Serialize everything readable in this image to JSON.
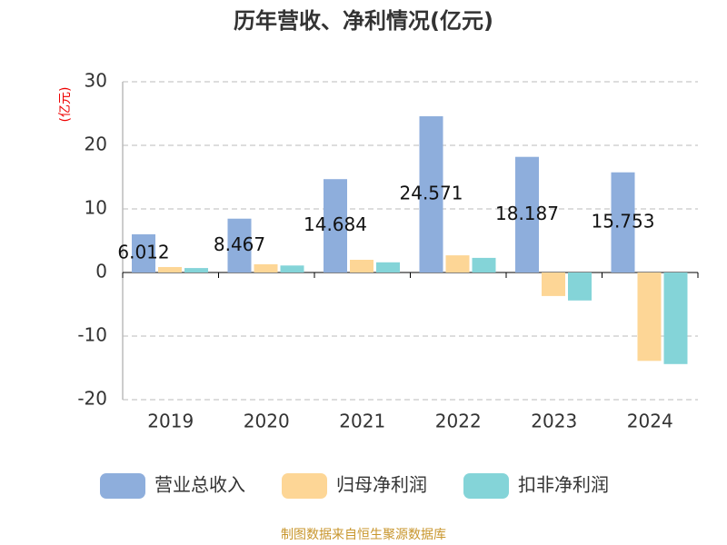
{
  "chart_data": {
    "type": "bar",
    "title": "历年营收、净利情况(亿元)",
    "y_label": "(亿元)",
    "categories": [
      "2019",
      "2020",
      "2021",
      "2022",
      "2023",
      "2024"
    ],
    "series": [
      {
        "name": "营业总收入",
        "color": "#8eaedc",
        "values": [
          6.012,
          8.467,
          14.684,
          24.571,
          18.187,
          15.753
        ],
        "labels": true
      },
      {
        "name": "归母净利润",
        "color": "#fdd696",
        "values": [
          0.86,
          1.3,
          2.0,
          2.7,
          -3.7,
          -13.9
        ]
      },
      {
        "name": "扣非净利润",
        "color": "#84d4d8",
        "values": [
          0.7,
          1.1,
          1.6,
          2.3,
          -4.4,
          -14.4
        ]
      }
    ],
    "ylim": [
      -20,
      30
    ],
    "yticks": [
      -20,
      -10,
      0,
      10,
      20,
      30
    ],
    "grid": true,
    "source": "制图数据来自恒生聚源数据库"
  }
}
